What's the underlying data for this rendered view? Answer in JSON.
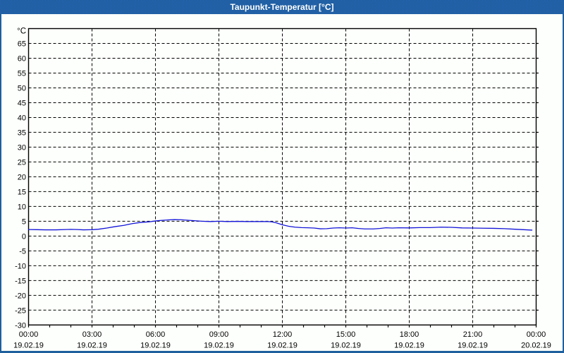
{
  "window": {
    "title": "Taupunkt-Temperatur [°C]",
    "titlebar_color": "#1E5F9E",
    "titlebar_dot_color": "#2A62BE",
    "border_color": "#1E5F9E",
    "background_color": "#FCFFFB"
  },
  "chart_data": {
    "type": "line",
    "title": "Taupunkt-Temperatur [°C]",
    "xlabel": "",
    "ylabel": "°C",
    "y_axis": {
      "unit_label": "°C",
      "min": -30,
      "max": 70,
      "tick_step": 5,
      "tick_labels": [
        "65",
        "60",
        "55",
        "50",
        "45",
        "40",
        "35",
        "30",
        "25",
        "20",
        "15",
        "10",
        "5",
        "0",
        "-5",
        "-10",
        "-15",
        "-20",
        "-25",
        "-30"
      ],
      "tick_values": [
        65,
        60,
        55,
        50,
        45,
        40,
        35,
        30,
        25,
        20,
        15,
        10,
        5,
        0,
        -5,
        -10,
        -15,
        -20,
        -25,
        -30
      ]
    },
    "x_axis": {
      "min_hours": 0,
      "max_hours": 24,
      "major_step_hours": 3,
      "minor_step_hours": 1,
      "major_ticks": [
        {
          "time": "00:00",
          "date": "19.02.19"
        },
        {
          "time": "03:00",
          "date": "19.02.19"
        },
        {
          "time": "06:00",
          "date": "19.02.19"
        },
        {
          "time": "09:00",
          "date": "19.02.19"
        },
        {
          "time": "12:00",
          "date": "19.02.19"
        },
        {
          "time": "15:00",
          "date": "19.02.19"
        },
        {
          "time": "18:00",
          "date": "19.02.19"
        },
        {
          "time": "21:00",
          "date": "19.02.19"
        },
        {
          "time": "00:00",
          "date": "20.02.19"
        }
      ]
    },
    "grid": {
      "style": "dashed",
      "color": "#000000",
      "on": true
    },
    "legend": {
      "visible": false
    },
    "series": [
      {
        "name": "Taupunkt-Temperatur",
        "color": "#1414D9",
        "points": [
          [
            0.0,
            2.2
          ],
          [
            0.4,
            2.15
          ],
          [
            0.8,
            2.1
          ],
          [
            1.3,
            2.1
          ],
          [
            1.75,
            2.2
          ],
          [
            2.0,
            2.25
          ],
          [
            2.3,
            2.2
          ],
          [
            2.6,
            2.1
          ],
          [
            3.0,
            2.15
          ],
          [
            3.3,
            2.3
          ],
          [
            3.7,
            2.7
          ],
          [
            4.1,
            3.2
          ],
          [
            4.5,
            3.6
          ],
          [
            4.9,
            4.2
          ],
          [
            5.3,
            4.6
          ],
          [
            5.7,
            4.8
          ],
          [
            6.0,
            5.1
          ],
          [
            6.3,
            5.3
          ],
          [
            6.6,
            5.45
          ],
          [
            6.9,
            5.55
          ],
          [
            7.2,
            5.5
          ],
          [
            7.5,
            5.35
          ],
          [
            7.9,
            5.15
          ],
          [
            8.2,
            5.0
          ],
          [
            8.6,
            4.9
          ],
          [
            9.0,
            5.0
          ],
          [
            9.4,
            4.9
          ],
          [
            9.9,
            4.95
          ],
          [
            10.3,
            4.9
          ],
          [
            10.8,
            4.9
          ],
          [
            11.3,
            4.9
          ],
          [
            11.5,
            4.8
          ],
          [
            11.7,
            4.5
          ],
          [
            12.0,
            3.8
          ],
          [
            12.3,
            3.3
          ],
          [
            12.6,
            3.0
          ],
          [
            12.9,
            2.85
          ],
          [
            13.2,
            2.8
          ],
          [
            13.5,
            2.7
          ],
          [
            13.8,
            2.45
          ],
          [
            14.1,
            2.5
          ],
          [
            14.4,
            2.7
          ],
          [
            14.7,
            2.8
          ],
          [
            15.0,
            2.7
          ],
          [
            15.3,
            2.8
          ],
          [
            15.6,
            2.55
          ],
          [
            15.9,
            2.4
          ],
          [
            16.3,
            2.4
          ],
          [
            16.6,
            2.55
          ],
          [
            16.9,
            2.8
          ],
          [
            17.2,
            2.7
          ],
          [
            17.5,
            2.8
          ],
          [
            18.0,
            2.75
          ],
          [
            18.5,
            2.85
          ],
          [
            19.0,
            2.85
          ],
          [
            19.5,
            3.0
          ],
          [
            20.0,
            2.95
          ],
          [
            20.5,
            2.75
          ],
          [
            21.0,
            2.7
          ],
          [
            21.5,
            2.65
          ],
          [
            22.0,
            2.6
          ],
          [
            22.5,
            2.5
          ],
          [
            23.0,
            2.3
          ],
          [
            23.4,
            2.15
          ],
          [
            23.8,
            2.0
          ]
        ]
      }
    ]
  }
}
